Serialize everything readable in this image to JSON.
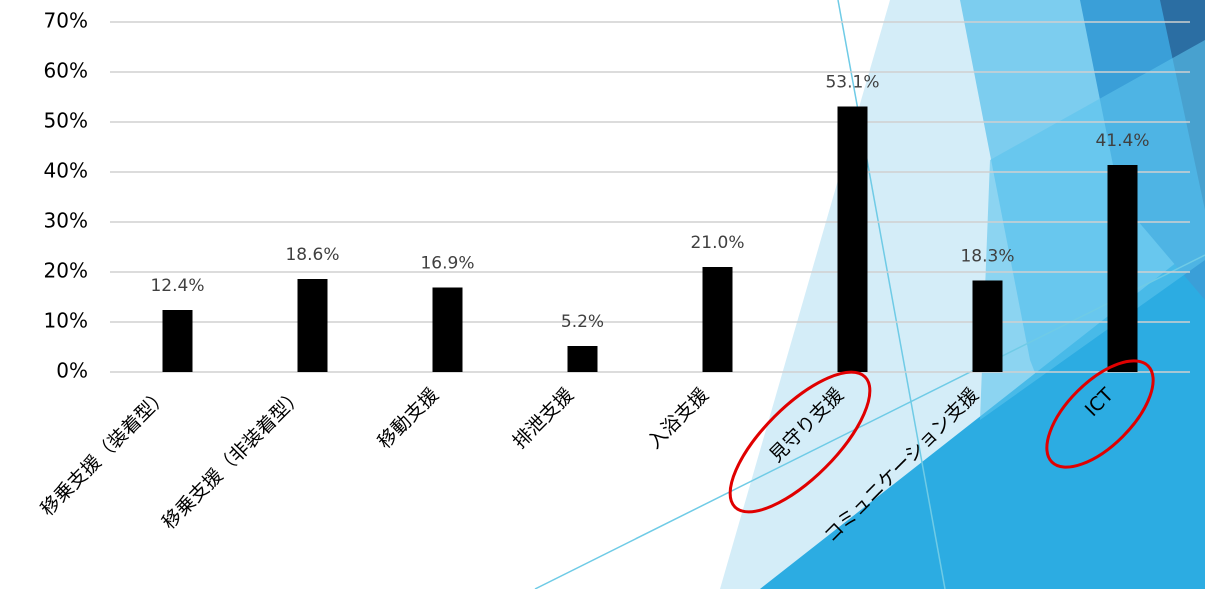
{
  "chart_data": {
    "type": "bar",
    "categories": [
      "移乗支援（装着型）",
      "移乗支援（非装着型）",
      "移動支援",
      "排泄支援",
      "入浴支援",
      "見守り支援",
      "コミュニケーション支援",
      "ICT"
    ],
    "values": [
      12.4,
      18.6,
      16.9,
      5.2,
      21.0,
      53.1,
      18.3,
      41.4
    ],
    "value_labels": [
      "12.4%",
      "18.6%",
      "16.9%",
      "5.2%",
      "21.0%",
      "53.1%",
      "18.3%",
      "41.4%"
    ],
    "color": "#000000",
    "ylim": [
      0,
      70
    ],
    "yticks": [
      {
        "value": 0,
        "label": "0%"
      },
      {
        "value": 10,
        "label": "10%"
      },
      {
        "value": 20,
        "label": "20%"
      },
      {
        "value": 30,
        "label": "30%"
      },
      {
        "value": 40,
        "label": "40%"
      },
      {
        "value": 50,
        "label": "50%"
      },
      {
        "value": 60,
        "label": "60%"
      },
      {
        "value": 70,
        "label": "70%"
      }
    ],
    "grid": true
  }
}
